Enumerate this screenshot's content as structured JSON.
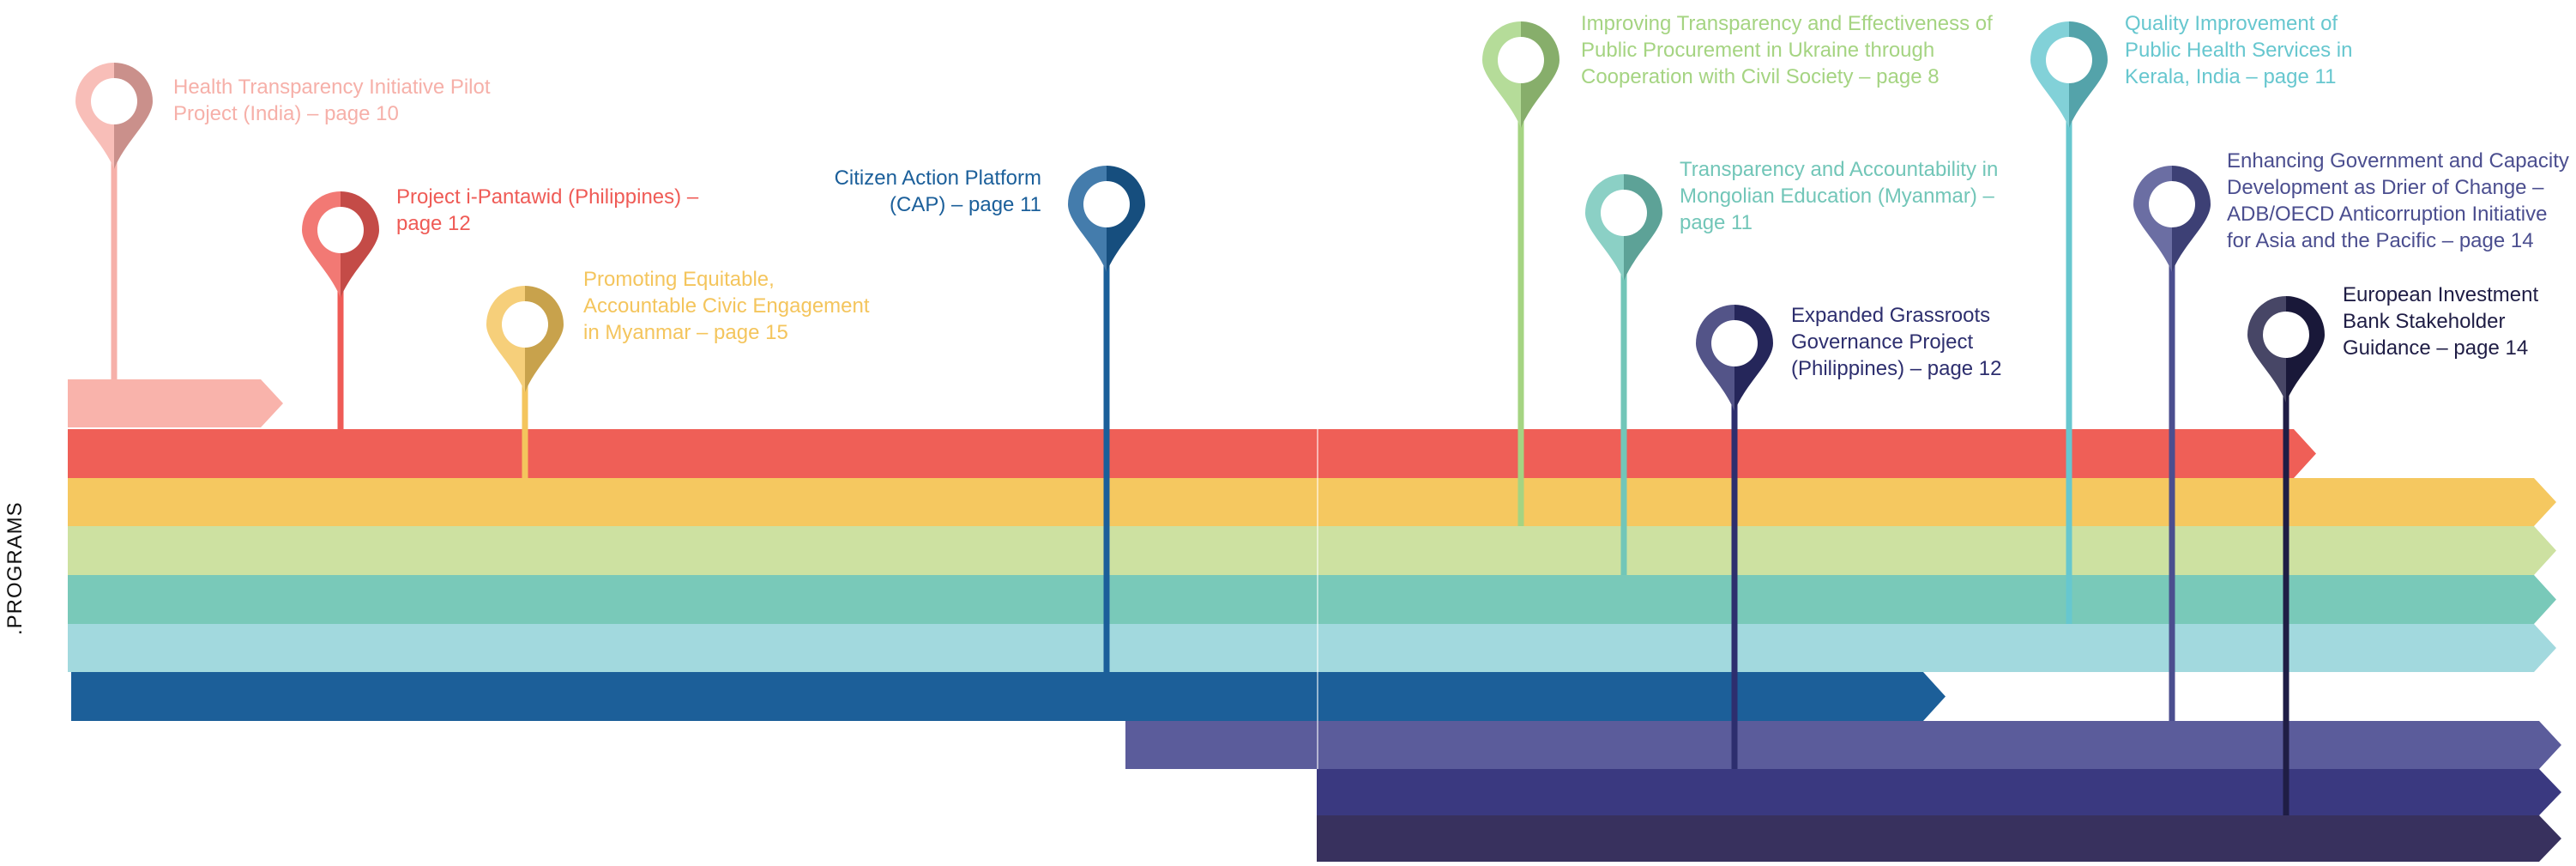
{
  "side_label": ".PROGRAMS",
  "programs": [
    {
      "id": "health-transparency-initiative",
      "text": "Health Transparency Initiative Pilot Project (India) – page 10",
      "color": "#f6b0a9",
      "band": 0
    },
    {
      "id": "project-i-pantawid",
      "text": "Project i-Pantawid (Philippines) – page 12",
      "color": "#ef5b56",
      "band": 1
    },
    {
      "id": "promoting-equitable-civic-engagement",
      "text": "Promoting Equitable, Accountable Civic Engagement in Myanmar – page 15",
      "color": "#f4c55d",
      "band": 2
    },
    {
      "id": "citizen-action-platform",
      "text": "Citizen Action Platform (CAP) – page 11",
      "color": "#1b5f9a",
      "band": 6
    },
    {
      "id": "transparency-ukraine-procurement",
      "text": "Improving Transparency and Effectiveness of Public Procurement in Ukraine through Cooperation with Civil Society – page 8",
      "color": "#a5d482",
      "band": 3
    },
    {
      "id": "transparency-mongolian-education",
      "text": "Transparency and Accountability in Mongolian Education (Myanmar) – page 11",
      "color": "#72c6b8",
      "band": 4
    },
    {
      "id": "quality-improvement-kerala",
      "text": "Quality Improvement of Public Health Services in Kerala, India – page 11",
      "color": "#67c7cf",
      "band": 5
    },
    {
      "id": "expanded-grassroots-governance",
      "text": "Expanded Grassroots Governance Project (Philippines) – page 12",
      "color": "#2d2e6e",
      "band": 8
    },
    {
      "id": "enhancing-government-capacity",
      "text": "Enhancing Government and Capacity Development as Drier of Change – ADB/OECD Anticorruption Initiative for Asia and the Pacific – page 14",
      "color": "#4b4e8f",
      "band": 7
    },
    {
      "id": "european-investment-bank",
      "text": "European Investment Bank Stakeholder Guidance – page 14",
      "color": "#1f1d45",
      "band": 9
    }
  ],
  "bands": [
    {
      "name": "band-health-transparency",
      "color": "#f9b3ab"
    },
    {
      "name": "band-i-pantawid",
      "color": "#ef5f57"
    },
    {
      "name": "band-myanmar-civic",
      "color": "#f5c860"
    },
    {
      "name": "band-ukraine-procurement",
      "color": "#cde1a1"
    },
    {
      "name": "band-mongolian-education",
      "color": "#79c9b9"
    },
    {
      "name": "band-kerala-health",
      "color": "#a2d9de"
    },
    {
      "name": "band-citizen-action",
      "color": "#1c5f99"
    },
    {
      "name": "band-adb-oecd",
      "color": "#5b5c9b"
    },
    {
      "name": "band-grassroots",
      "color": "#3a3980"
    },
    {
      "name": "band-eib",
      "color": "#38315e"
    }
  ]
}
